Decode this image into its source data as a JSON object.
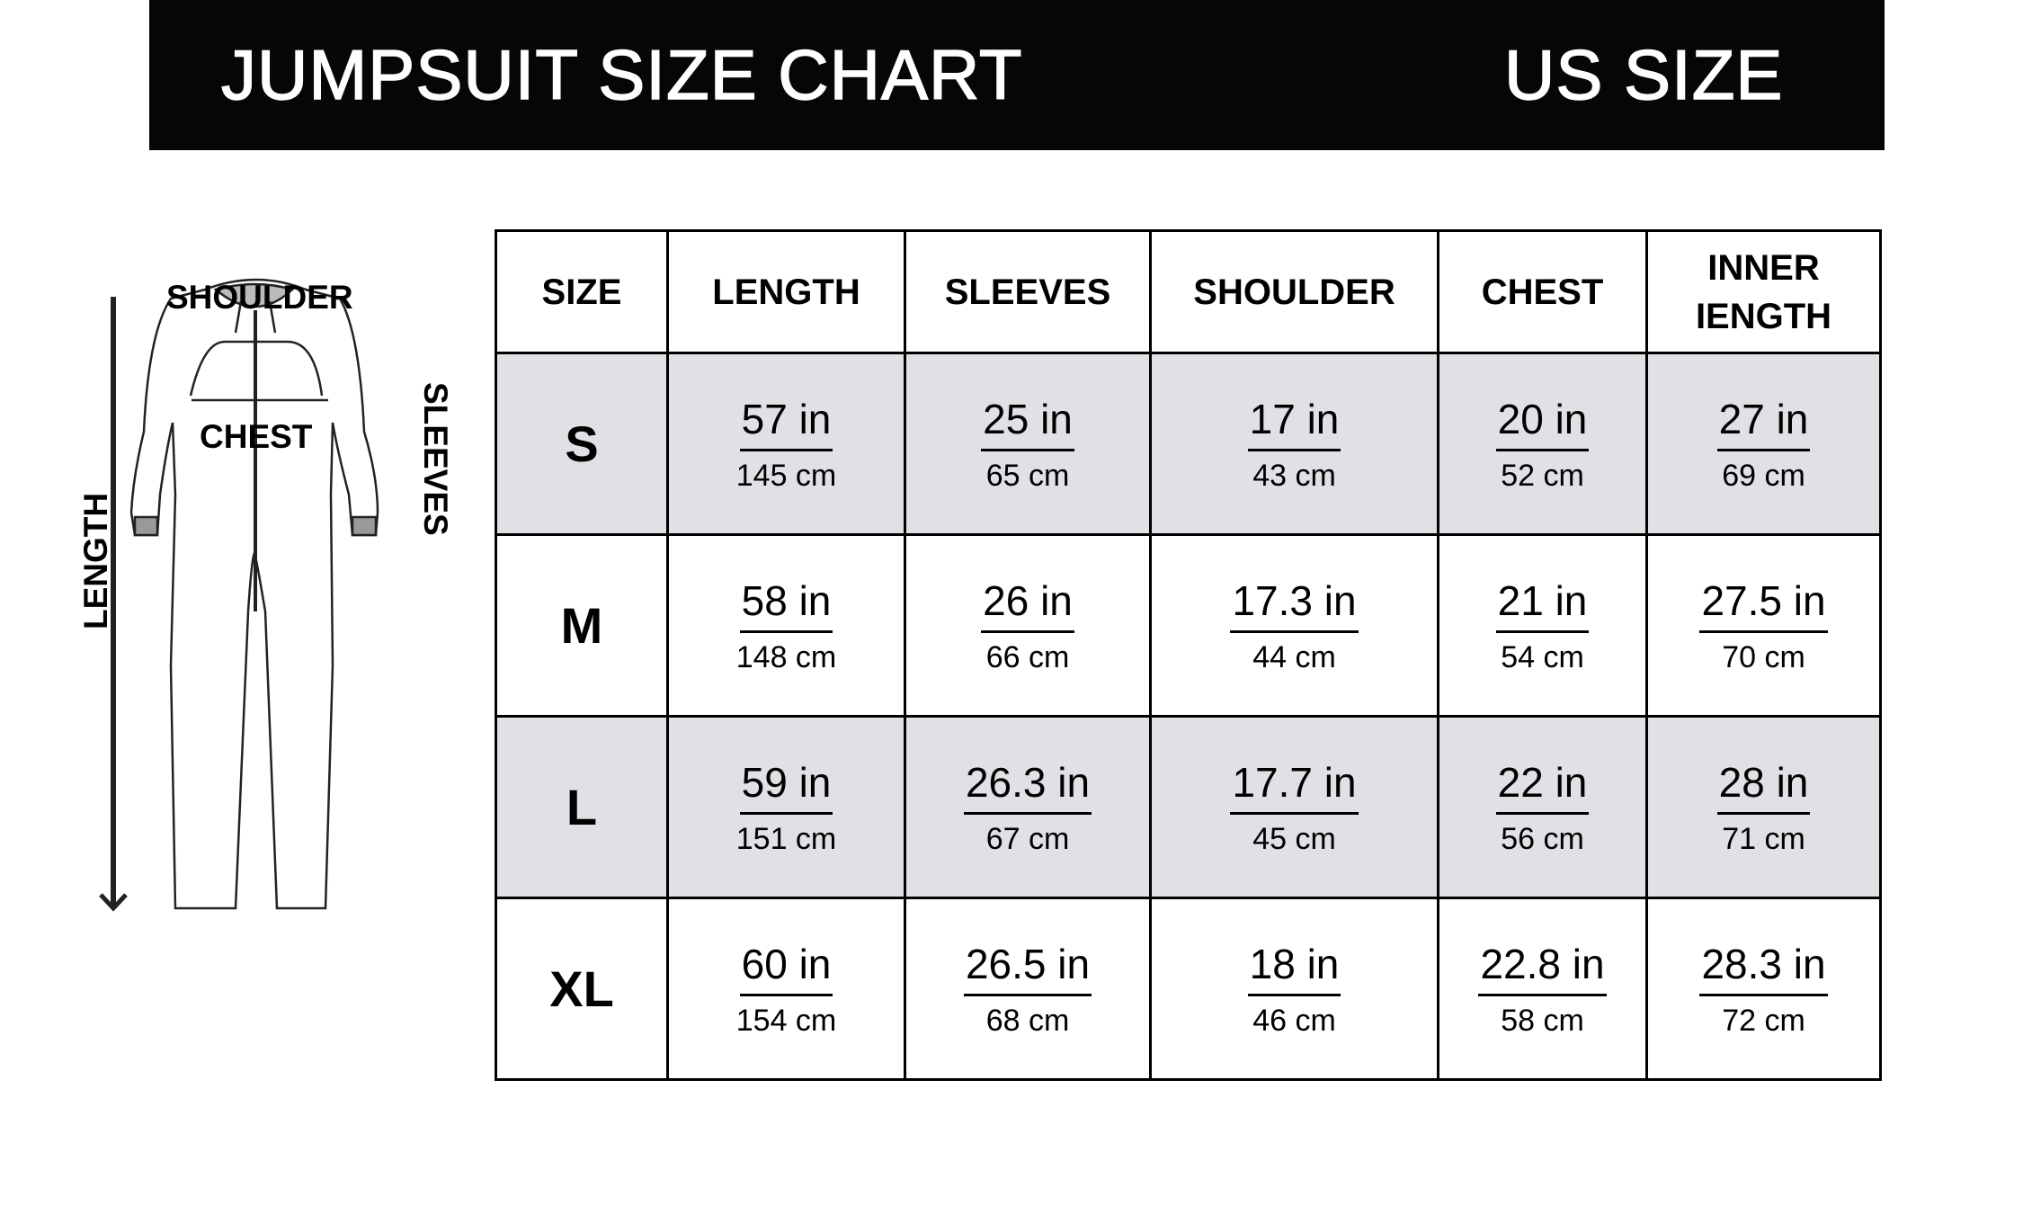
{
  "header": {
    "title": "JUMPSUIT SIZE CHART",
    "region": "US SIZE"
  },
  "figure": {
    "shoulder": "SHOULDER",
    "chest": "CHEST",
    "sleeves": "SLEEVES",
    "length": "LENGTH"
  },
  "table": {
    "headers": [
      "SIZE",
      "LENGTH",
      "SLEEVES",
      "SHOULDER",
      "CHEST",
      "INNER IENGTH"
    ],
    "rows": [
      {
        "size": "S",
        "cells": [
          {
            "in": "57 in",
            "cm": "145 cm"
          },
          {
            "in": "25 in",
            "cm": "65 cm"
          },
          {
            "in": "17 in",
            "cm": "43 cm"
          },
          {
            "in": "20 in",
            "cm": "52 cm"
          },
          {
            "in": "27 in",
            "cm": "69 cm"
          }
        ]
      },
      {
        "size": "M",
        "cells": [
          {
            "in": "58 in",
            "cm": "148 cm"
          },
          {
            "in": "26 in",
            "cm": "66 cm"
          },
          {
            "in": "17.3 in",
            "cm": "44 cm"
          },
          {
            "in": "21 in",
            "cm": "54 cm"
          },
          {
            "in": "27.5 in",
            "cm": "70 cm"
          }
        ]
      },
      {
        "size": "L",
        "cells": [
          {
            "in": "59 in",
            "cm": "151 cm"
          },
          {
            "in": "26.3 in",
            "cm": "67 cm"
          },
          {
            "in": "17.7 in",
            "cm": "45 cm"
          },
          {
            "in": "22 in",
            "cm": "56 cm"
          },
          {
            "in": "28 in",
            "cm": "71 cm"
          }
        ]
      },
      {
        "size": "XL",
        "cells": [
          {
            "in": "60 in",
            "cm": "154 cm"
          },
          {
            "in": "26.5 in",
            "cm": "68 cm"
          },
          {
            "in": "18 in",
            "cm": "46 cm"
          },
          {
            "in": "22.8 in",
            "cm": "58 cm"
          },
          {
            "in": "28.3 in",
            "cm": "72 cm"
          }
        ]
      }
    ]
  },
  "colors": {
    "banner": "#060606",
    "shaded_row": "#e0e1e5"
  }
}
